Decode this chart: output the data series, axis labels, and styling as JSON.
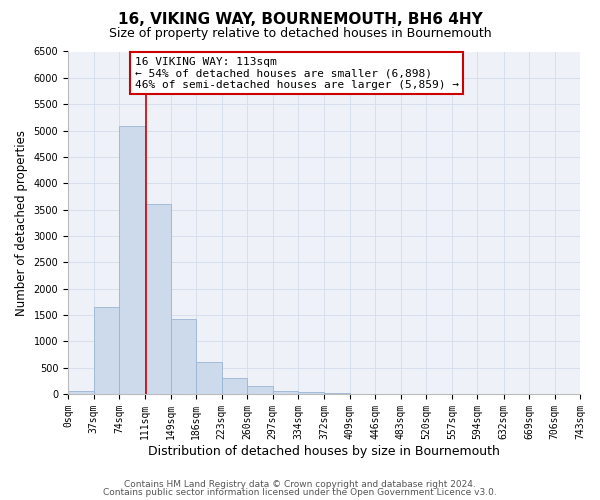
{
  "title": "16, VIKING WAY, BOURNEMOUTH, BH6 4HY",
  "subtitle": "Size of property relative to detached houses in Bournemouth",
  "xlabel": "Distribution of detached houses by size in Bournemouth",
  "ylabel": "Number of detached properties",
  "bin_edges": [
    0,
    37,
    74,
    111,
    149,
    186,
    223,
    260,
    297,
    334,
    372,
    409,
    446,
    483,
    520,
    557,
    594,
    632,
    669,
    706,
    743
  ],
  "bin_heights": [
    60,
    1650,
    5080,
    3600,
    1420,
    610,
    300,
    145,
    60,
    30,
    10,
    5,
    0,
    0,
    0,
    0,
    0,
    0,
    0,
    0
  ],
  "bar_color": "#ccdaec",
  "bar_edge_color": "#9ab4d4",
  "vline_x": 113,
  "vline_color": "#cc0000",
  "ylim": [
    0,
    6500
  ],
  "yticks": [
    0,
    500,
    1000,
    1500,
    2000,
    2500,
    3000,
    3500,
    4000,
    4500,
    5000,
    5500,
    6000,
    6500
  ],
  "tick_labels": [
    "0sqm",
    "37sqm",
    "74sqm",
    "111sqm",
    "149sqm",
    "186sqm",
    "223sqm",
    "260sqm",
    "297sqm",
    "334sqm",
    "372sqm",
    "409sqm",
    "446sqm",
    "483sqm",
    "520sqm",
    "557sqm",
    "594sqm",
    "632sqm",
    "669sqm",
    "706sqm",
    "743sqm"
  ],
  "annotation_line1": "16 VIKING WAY: 113sqm",
  "annotation_line2": "← 54% of detached houses are smaller (6,898)",
  "annotation_line3": "46% of semi-detached houses are larger (5,859) →",
  "footer1": "Contains HM Land Registry data © Crown copyright and database right 2024.",
  "footer2": "Contains public sector information licensed under the Open Government Licence v3.0.",
  "grid_color": "#d4dcea",
  "background_color": "#eef2f8",
  "title_fontsize": 11,
  "subtitle_fontsize": 9,
  "xlabel_fontsize": 9,
  "ylabel_fontsize": 8.5,
  "tick_fontsize": 7,
  "footer_fontsize": 6.5,
  "annot_fontsize": 8
}
